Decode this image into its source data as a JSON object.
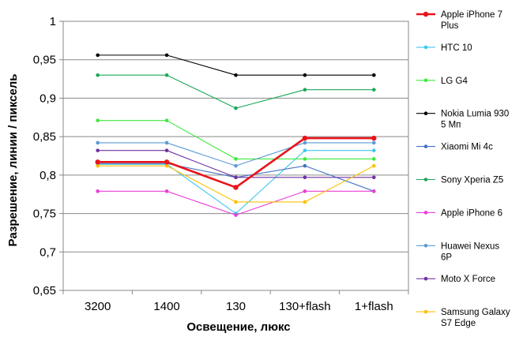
{
  "chart_data": {
    "type": "line",
    "categories": [
      "3200",
      "1400",
      "130",
      "130+flash",
      "1+flash"
    ],
    "xlabel": "Освещение,  люкс",
    "ylabel": "Разрешение,  линии / пиксель",
    "ylim": [
      0.65,
      1
    ],
    "yticks": [
      "0,65",
      "0,7",
      "0,75",
      "0,8",
      "0,85",
      "0,9",
      "0,95",
      "1"
    ],
    "grid": true,
    "legend": "right",
    "series": [
      {
        "name": "Apple iPhone 7 Plus",
        "name_lines": [
          "Apple iPhone 7",
          "Plus"
        ],
        "color": "#e8141b",
        "values": [
          0.817,
          0.817,
          0.784,
          0.848,
          0.848
        ],
        "highlight": true
      },
      {
        "name": "HTC 10",
        "name_lines": [
          "HTC 10"
        ],
        "color": "#3ec7ef",
        "values": [
          0.814,
          0.814,
          0.75,
          0.832,
          0.832
        ]
      },
      {
        "name": "LG G4",
        "name_lines": [
          "LG G4"
        ],
        "color": "#3fe83f",
        "values": [
          0.871,
          0.871,
          0.821,
          0.821,
          0.821
        ]
      },
      {
        "name": "Nokia Lumia 930 5 Мп",
        "name_lines": [
          "Nokia Lumia 930",
          "5 Мп"
        ],
        "color": "#000000",
        "values": [
          0.956,
          0.956,
          0.93,
          0.93,
          0.93
        ]
      },
      {
        "name": "Xiaomi Mi 4c",
        "name_lines": [
          "Xiaomi Mi 4c"
        ],
        "color": "#4472c4",
        "values": [
          0.815,
          0.815,
          0.797,
          0.812,
          0.779
        ]
      },
      {
        "name": "Sony Xperia Z5",
        "name_lines": [
          "Sony Xperia Z5"
        ],
        "color": "#1fa85a",
        "values": [
          0.93,
          0.93,
          0.887,
          0.911,
          0.911
        ]
      },
      {
        "name": "Apple iPhone 6",
        "name_lines": [
          "Apple iPhone 6"
        ],
        "color": "#e83fd6",
        "values": [
          0.779,
          0.779,
          0.748,
          0.779,
          0.779
        ]
      },
      {
        "name": "Huawei Nexus 6P",
        "name_lines": [
          "Huawei Nexus",
          "6P"
        ],
        "color": "#5b9bd5",
        "values": [
          0.842,
          0.842,
          0.812,
          0.842,
          0.842
        ]
      },
      {
        "name": "Moto X Force",
        "name_lines": [
          "Moto X Force"
        ],
        "color": "#7030a0",
        "values": [
          0.832,
          0.832,
          0.797,
          0.797,
          0.797
        ]
      },
      {
        "name": "Samsung Galaxy S7 Edge",
        "name_lines": [
          "Samsung Galaxy",
          "S7 Edge"
        ],
        "color": "#ffc000",
        "values": [
          0.812,
          0.812,
          0.765,
          0.765,
          0.812
        ]
      }
    ]
  }
}
